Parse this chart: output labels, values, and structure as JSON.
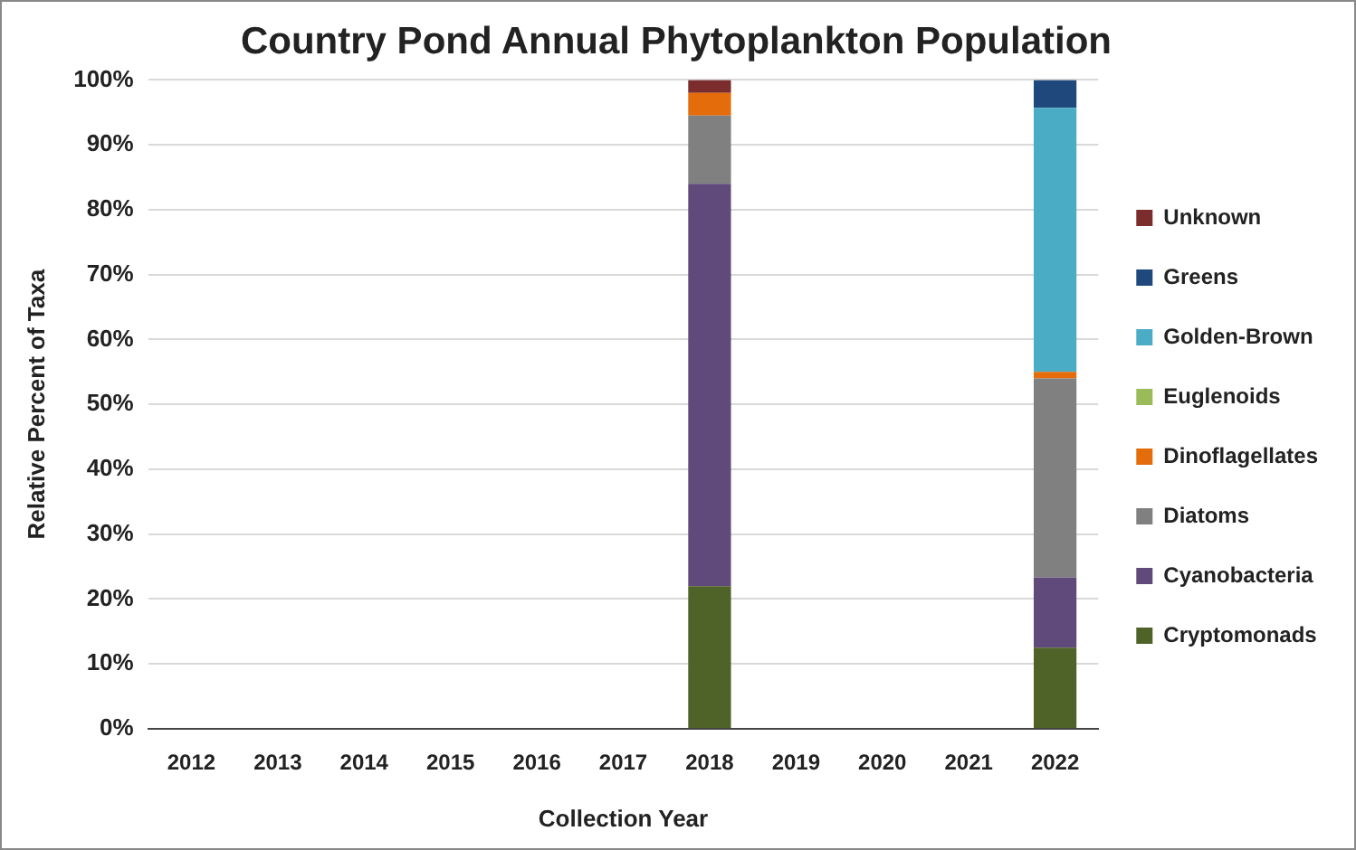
{
  "chart_data": {
    "type": "bar",
    "title": "Country Pond Annual Phytoplankton Population",
    "xlabel": "Collection Year",
    "ylabel": "Relative Percent of Taxa",
    "categories": [
      "2012",
      "2013",
      "2014",
      "2015",
      "2016",
      "2017",
      "2018",
      "2019",
      "2020",
      "2021",
      "2022"
    ],
    "stacked": true,
    "ylim": [
      0,
      100
    ],
    "yticks": [
      {
        "value": 0,
        "label": "0%"
      },
      {
        "value": 10,
        "label": "10%"
      },
      {
        "value": 20,
        "label": "20%"
      },
      {
        "value": 30,
        "label": "30%"
      },
      {
        "value": 40,
        "label": "40%"
      },
      {
        "value": 50,
        "label": "50%"
      },
      {
        "value": 60,
        "label": "60%"
      },
      {
        "value": 70,
        "label": "70%"
      },
      {
        "value": 80,
        "label": "80%"
      },
      {
        "value": 90,
        "label": "90%"
      },
      {
        "value": 100,
        "label": "100%"
      }
    ],
    "grid": "y",
    "legend": "right",
    "series": [
      {
        "name": "Cryptomonads",
        "color": "#4f6228",
        "values": [
          0,
          0,
          0,
          0,
          0,
          0,
          22,
          0,
          0,
          0,
          12.5
        ]
      },
      {
        "name": "Cyanobacteria",
        "color": "#604a7b",
        "values": [
          0,
          0,
          0,
          0,
          0,
          0,
          62,
          0,
          0,
          0,
          10.8
        ]
      },
      {
        "name": "Diatoms",
        "color": "#808080",
        "values": [
          0,
          0,
          0,
          0,
          0,
          0,
          10.5,
          0,
          0,
          0,
          30.7
        ]
      },
      {
        "name": "Dinoflagellates",
        "color": "#e46c0a",
        "values": [
          0,
          0,
          0,
          0,
          0,
          0,
          3.5,
          0,
          0,
          0,
          1
        ]
      },
      {
        "name": "Euglenoids",
        "color": "#9bbb59",
        "values": [
          0,
          0,
          0,
          0,
          0,
          0,
          0,
          0,
          0,
          0,
          0
        ]
      },
      {
        "name": "Golden-Brown",
        "color": "#4bacc6",
        "values": [
          0,
          0,
          0,
          0,
          0,
          0,
          0,
          0,
          0,
          0,
          40.7
        ]
      },
      {
        "name": "Greens",
        "color": "#1f497d",
        "values": [
          0,
          0,
          0,
          0,
          0,
          0,
          0,
          0,
          0,
          0,
          4.3
        ]
      },
      {
        "name": "Unknown",
        "color": "#7b2c2c",
        "values": [
          0,
          0,
          0,
          0,
          0,
          0,
          2,
          0,
          0,
          0,
          0
        ]
      }
    ]
  }
}
